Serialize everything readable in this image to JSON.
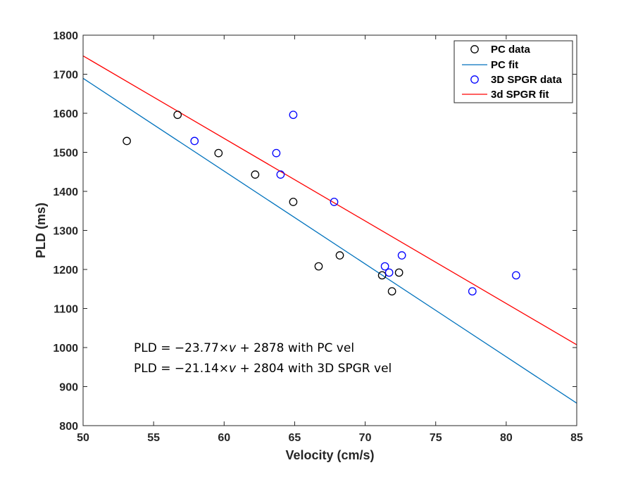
{
  "chart_data": {
    "type": "scatter",
    "title": "",
    "xlabel": "Velocity (cm/s)",
    "ylabel": "PLD (ms)",
    "xlim": [
      50,
      85
    ],
    "ylim": [
      800,
      1800
    ],
    "xticks": [
      50,
      55,
      60,
      65,
      70,
      75,
      80,
      85
    ],
    "yticks": [
      800,
      900,
      1000,
      1100,
      1200,
      1300,
      1400,
      1500,
      1600,
      1700,
      1800
    ],
    "grid": false,
    "legend_position": "top-right",
    "series": [
      {
        "name": "PC data",
        "kind": "scatter",
        "marker": "open-circle",
        "color": "#000000",
        "points": [
          {
            "x": 53.1,
            "y": 1529
          },
          {
            "x": 56.7,
            "y": 1596
          },
          {
            "x": 59.6,
            "y": 1498
          },
          {
            "x": 62.2,
            "y": 1443
          },
          {
            "x": 64.9,
            "y": 1373
          },
          {
            "x": 66.7,
            "y": 1208
          },
          {
            "x": 68.2,
            "y": 1236
          },
          {
            "x": 71.2,
            "y": 1185
          },
          {
            "x": 71.9,
            "y": 1144
          },
          {
            "x": 72.4,
            "y": 1192
          }
        ]
      },
      {
        "name": "PC fit",
        "kind": "line",
        "color": "#0072BD",
        "slope": -23.77,
        "intercept": 2878
      },
      {
        "name": "3D SPGR data",
        "kind": "scatter",
        "marker": "open-circle",
        "color": "#0000FF",
        "points": [
          {
            "x": 57.9,
            "y": 1529
          },
          {
            "x": 63.7,
            "y": 1498
          },
          {
            "x": 64.0,
            "y": 1443
          },
          {
            "x": 64.9,
            "y": 1596
          },
          {
            "x": 67.8,
            "y": 1373
          },
          {
            "x": 71.4,
            "y": 1208
          },
          {
            "x": 71.7,
            "y": 1192
          },
          {
            "x": 72.6,
            "y": 1236
          },
          {
            "x": 77.6,
            "y": 1144
          },
          {
            "x": 80.7,
            "y": 1185
          }
        ]
      },
      {
        "name": "3d SPGR fit",
        "kind": "line",
        "color": "#FF0000",
        "slope": -21.14,
        "intercept": 2804
      }
    ],
    "annotations": [
      {
        "prefix": "PLD = −23.77×",
        "var": "v",
        "suffix": " + 2878 with PC vel"
      },
      {
        "prefix": "PLD = −21.14×",
        "var": "v",
        "suffix": " + 2804 with 3D SPGR vel"
      }
    ]
  }
}
